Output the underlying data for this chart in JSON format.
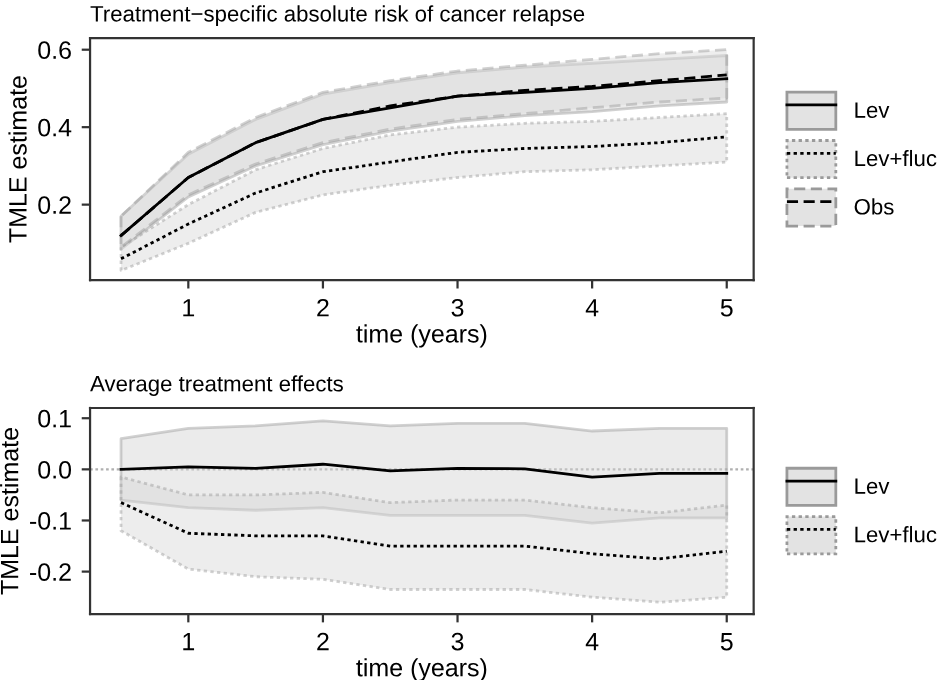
{
  "chart_data": [
    {
      "type": "line",
      "title": "Treatment−specific absolute risk of cancer relapse",
      "xlabel": "time (years)",
      "ylabel": "TMLE estimate",
      "x": [
        0.5,
        1,
        1.5,
        2,
        2.5,
        3,
        3.5,
        4,
        4.5,
        5
      ],
      "xlim": [
        0.27,
        5.2
      ],
      "xticks": [
        1,
        2,
        3,
        4,
        5
      ],
      "ylim": [
        0.005,
        0.63
      ],
      "yticks": [
        {
          "value": 0.2,
          "label": "0.2"
        },
        {
          "value": 0.4,
          "label": "0.4"
        },
        {
          "value": 0.6,
          "label": "0.6"
        }
      ],
      "grid": false,
      "legend": "right",
      "marker": "none",
      "series": [
        {
          "name": "Lev",
          "color": "#000000",
          "line_style": "solid",
          "values": [
            0.12,
            0.27,
            0.36,
            0.42,
            0.45,
            0.48,
            0.49,
            0.5,
            0.515,
            0.525
          ],
          "lower": [
            0.085,
            0.22,
            0.3,
            0.355,
            0.39,
            0.415,
            0.43,
            0.44,
            0.455,
            0.465
          ],
          "upper": [
            0.17,
            0.33,
            0.42,
            0.485,
            0.515,
            0.54,
            0.555,
            0.565,
            0.575,
            0.585
          ]
        },
        {
          "name": "Lev+fluc",
          "color": "#000000",
          "line_style": "dotted",
          "values": [
            0.06,
            0.15,
            0.23,
            0.285,
            0.31,
            0.335,
            0.345,
            0.35,
            0.36,
            0.375
          ],
          "lower": [
            0.03,
            0.1,
            0.18,
            0.225,
            0.25,
            0.27,
            0.285,
            0.29,
            0.3,
            0.31
          ],
          "upper": [
            0.09,
            0.2,
            0.29,
            0.345,
            0.38,
            0.4,
            0.41,
            0.415,
            0.425,
            0.435
          ]
        },
        {
          "name": "Obs",
          "color": "#000000",
          "line_style": "dashed",
          "values": [
            0.12,
            0.27,
            0.36,
            0.42,
            0.455,
            0.48,
            0.495,
            0.505,
            0.52,
            0.535
          ],
          "lower": [
            0.09,
            0.225,
            0.305,
            0.36,
            0.395,
            0.42,
            0.435,
            0.45,
            0.465,
            0.475
          ],
          "upper": [
            0.17,
            0.335,
            0.425,
            0.49,
            0.52,
            0.545,
            0.56,
            0.575,
            0.59,
            0.6
          ]
        }
      ]
    },
    {
      "type": "line",
      "title": "Average treatment effects",
      "xlabel": "time (years)",
      "ylabel": "TMLE estimate",
      "x": [
        0.5,
        1,
        1.5,
        2,
        2.5,
        3,
        3.5,
        4,
        4.5,
        5
      ],
      "xlim": [
        0.27,
        5.2
      ],
      "xticks": [
        1,
        2,
        3,
        4,
        5
      ],
      "ylim": [
        -0.283,
        0.12
      ],
      "yticks": [
        {
          "value": -0.2,
          "label": "-0.2"
        },
        {
          "value": -0.1,
          "label": "-0.1"
        },
        {
          "value": 0.0,
          "label": "0.0"
        },
        {
          "value": 0.1,
          "label": "0.1"
        }
      ],
      "grid": false,
      "legend": "right",
      "marker": "none",
      "ref_lines": [
        {
          "axis": "y",
          "value": 0,
          "color": "#b0b0b0",
          "line_style": "dotted"
        }
      ],
      "series": [
        {
          "name": "Lev",
          "color": "#000000",
          "line_style": "solid",
          "values": [
            0.0,
            0.005,
            0.002,
            0.01,
            -0.003,
            0.002,
            0.001,
            -0.015,
            -0.008,
            -0.008
          ],
          "lower": [
            -0.06,
            -0.075,
            -0.08,
            -0.075,
            -0.09,
            -0.09,
            -0.09,
            -0.105,
            -0.095,
            -0.095
          ],
          "upper": [
            0.06,
            0.08,
            0.085,
            0.095,
            0.085,
            0.09,
            0.09,
            0.075,
            0.08,
            0.08
          ]
        },
        {
          "name": "Lev+fluc",
          "color": "#000000",
          "line_style": "dotted",
          "values": [
            -0.065,
            -0.125,
            -0.13,
            -0.13,
            -0.15,
            -0.15,
            -0.15,
            -0.165,
            -0.175,
            -0.16
          ],
          "lower": [
            -0.12,
            -0.195,
            -0.21,
            -0.215,
            -0.235,
            -0.235,
            -0.235,
            -0.25,
            -0.26,
            -0.25
          ],
          "upper": [
            -0.015,
            -0.05,
            -0.05,
            -0.045,
            -0.065,
            -0.06,
            -0.06,
            -0.075,
            -0.085,
            -0.07
          ]
        }
      ]
    }
  ]
}
